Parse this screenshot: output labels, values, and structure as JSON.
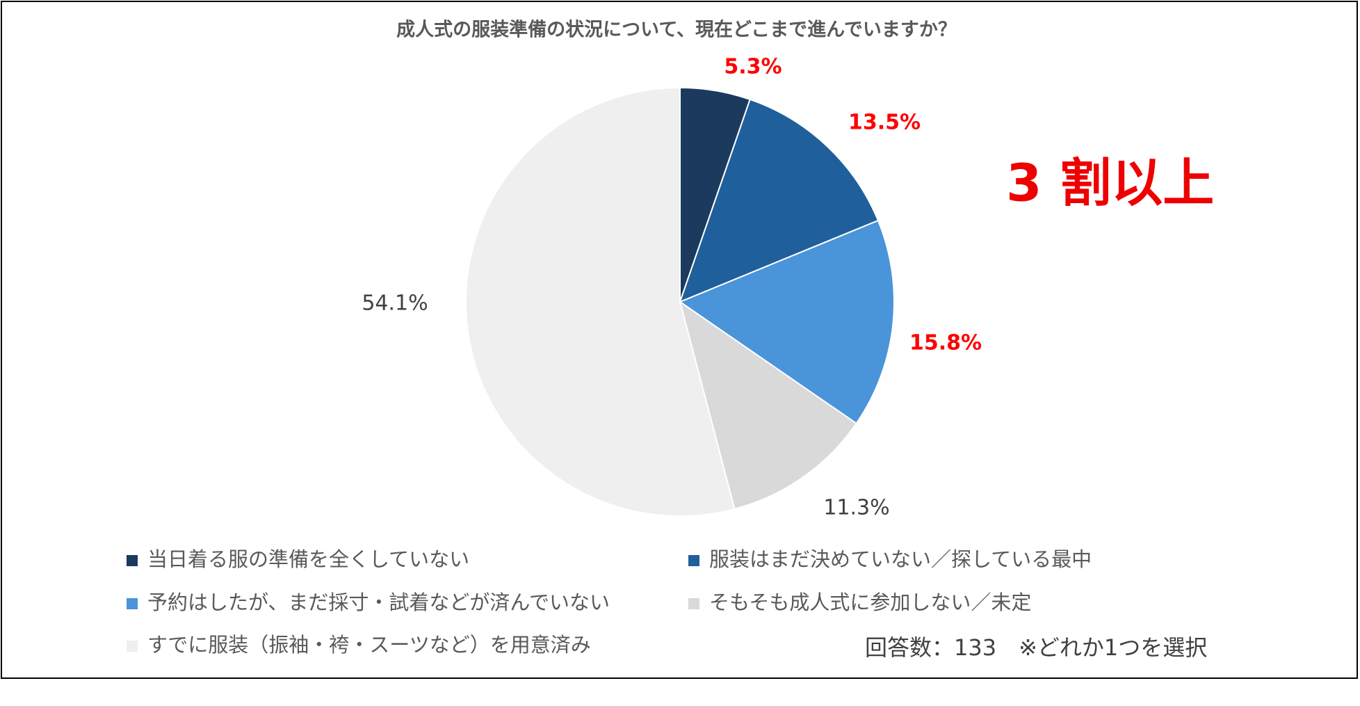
{
  "chart_data": {
    "type": "pie",
    "title": "成人式の服装準備の状況について、現在どこまで進んでいますか？",
    "categories": [
      "当日着る服の準備を全くしていない",
      "服装はまだ決めていない／探している最中",
      "予約はしたが、まだ採寸・試着などが済んでいない",
      "そもそも成人式に参加しない／未定",
      "すでに服装（振袖・袴・スーツなど）を用意済み"
    ],
    "values": [
      5.3,
      13.5,
      15.8,
      11.3,
      54.1
    ],
    "value_labels": [
      "5.3%",
      "13.5%",
      "15.8%",
      "11.3%",
      "54.1%"
    ],
    "colors": [
      "#1b3a5e",
      "#1f5f9b",
      "#4a94da",
      "#d9d9d9",
      "#efefef"
    ],
    "value_label_colors": [
      "#ff0000",
      "#ff0000",
      "#ff0000",
      "#404040",
      "#404040"
    ],
    "annotation": "3 割以上",
    "note": "回答数：133　※どれか1つを選択"
  }
}
